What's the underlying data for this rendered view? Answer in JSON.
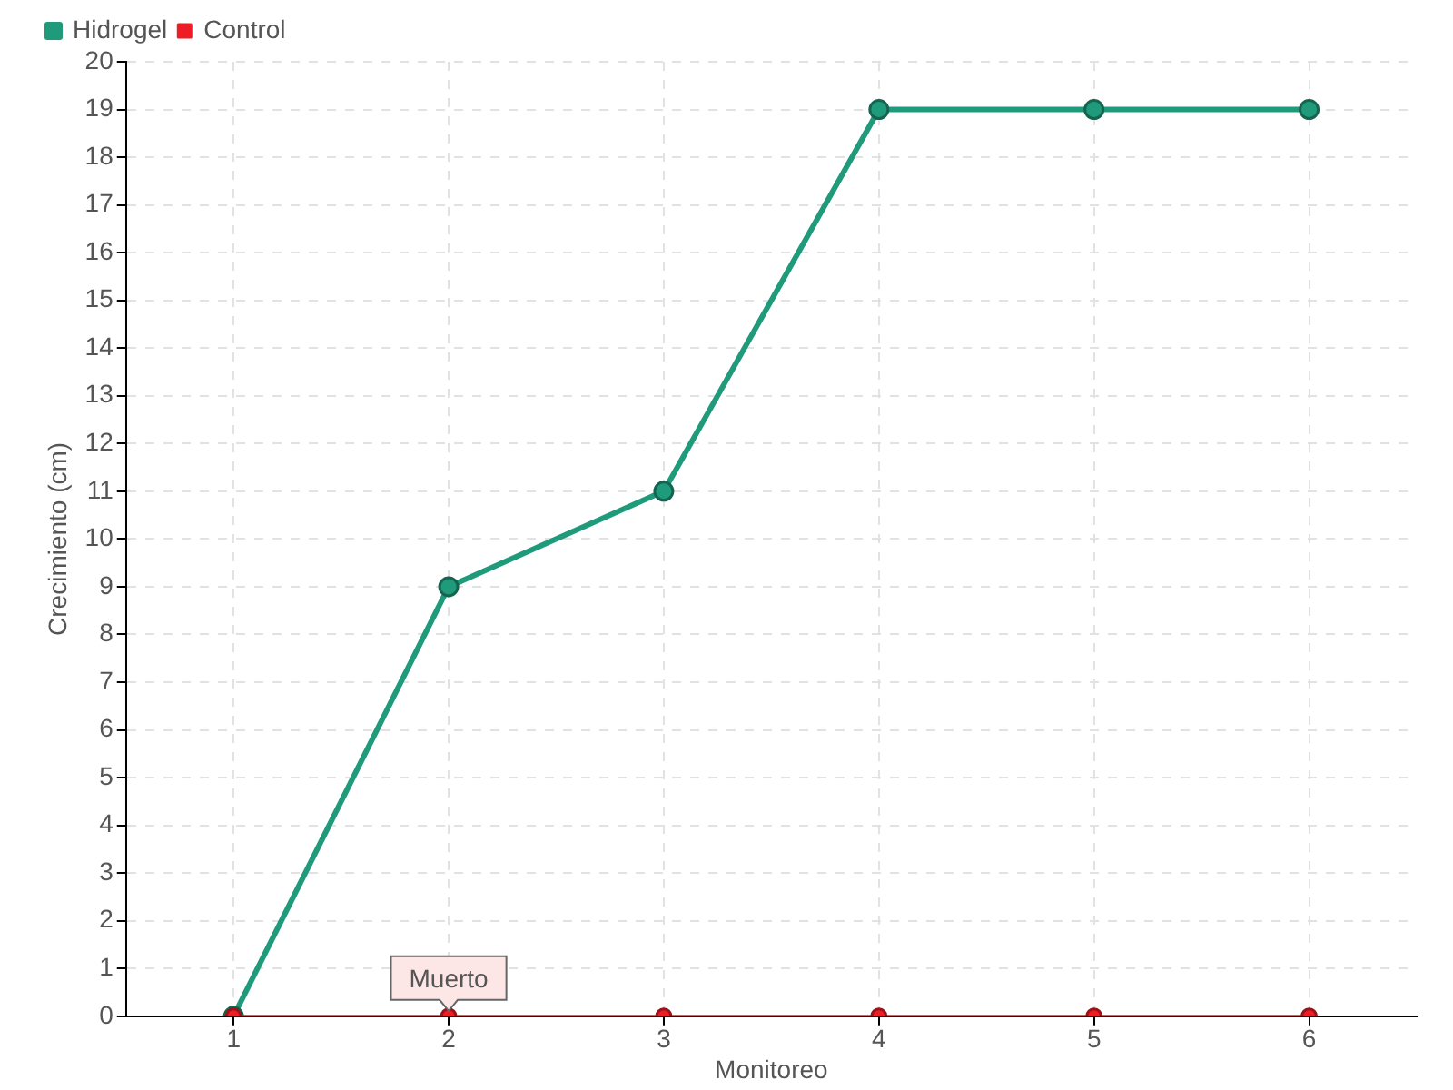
{
  "chart_data": {
    "type": "line",
    "categories": [
      "1",
      "2",
      "3",
      "4",
      "5",
      "6"
    ],
    "xlabel": "Monitoreo",
    "ylabel": "Crecimiento (cm)",
    "series": [
      {
        "name": "Hidrogel",
        "color": "#1f9a7b",
        "values": [
          0,
          9,
          11,
          19,
          19,
          19
        ]
      },
      {
        "name": "Control",
        "color": "#ee1c25",
        "values": [
          0,
          0,
          0,
          0,
          0,
          0
        ]
      }
    ],
    "ylim": [
      0,
      20
    ],
    "yticks": [
      0,
      1,
      2,
      3,
      4,
      5,
      6,
      7,
      8,
      9,
      10,
      11,
      12,
      13,
      14,
      15,
      16,
      17,
      18,
      19,
      20
    ],
    "grid": true,
    "legend": "top left",
    "marker": "circle",
    "line_style": "solid",
    "annotations": [
      {
        "text": "Muerto",
        "x": "2",
        "y": 0
      }
    ]
  }
}
